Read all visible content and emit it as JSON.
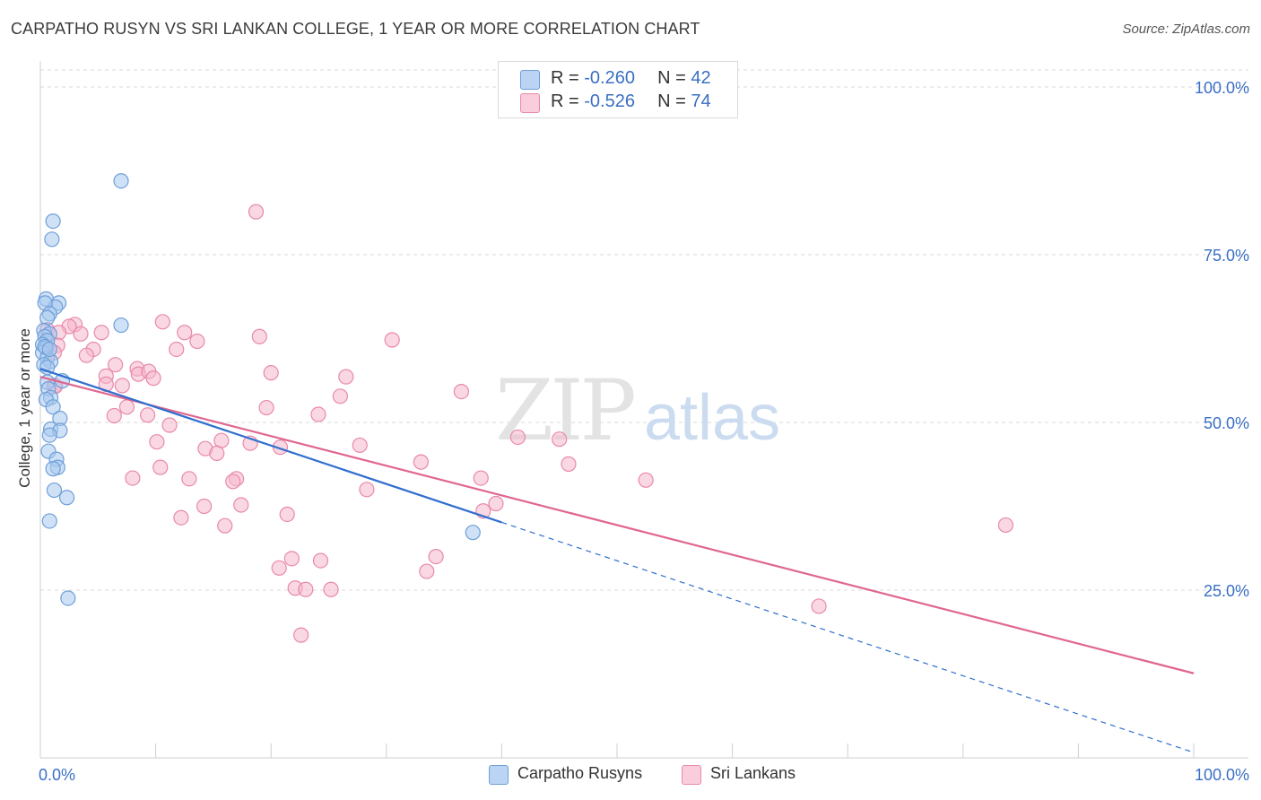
{
  "header": {
    "title": "CARPATHO RUSYN VS SRI LANKAN COLLEGE, 1 YEAR OR MORE CORRELATION CHART",
    "source": "Source: ZipAtlas.com"
  },
  "watermark": {
    "zip": "ZIP",
    "atlas": "atlas"
  },
  "legend": {
    "rows": [
      {
        "r_label": "R = ",
        "r_value": "-0.260",
        "n_label": "N = ",
        "n_value": "42"
      },
      {
        "r_label": "R = ",
        "r_value": "-0.526",
        "n_label": "N = ",
        "n_value": "74"
      }
    ]
  },
  "bottom_legend": [
    "Carpatho Rusyns",
    "Sri Lankans"
  ],
  "colors": {
    "blue_fill": "#a8c8ef",
    "blue_stroke": "#6f9fd8",
    "blue_line": "#2f6fcf",
    "pink_fill": "#f6b8cc",
    "pink_stroke": "#e889a8",
    "pink_line": "#e0668f",
    "tick_label": "#3a6fc4",
    "grid": "#d8d8d8"
  },
  "chart_data": {
    "type": "scatter",
    "title": "CARPATHO RUSYN VS SRI LANKAN COLLEGE, 1 YEAR OR MORE CORRELATION CHART",
    "xlabel": "",
    "ylabel": "College, 1 year or more",
    "xlim": [
      0,
      100
    ],
    "ylim": [
      0,
      100
    ],
    "x_tick_labels": [
      "0.0%",
      "100.0%"
    ],
    "y_tick_values": [
      25,
      50,
      75,
      100
    ],
    "y_tick_labels": [
      "25.0%",
      "50.0%",
      "75.0%",
      "100.0%"
    ],
    "grid": true,
    "series": [
      {
        "name": "Carpatho Rusyns",
        "color": "#6f9fd8",
        "R": -0.26,
        "N": 42,
        "trend": {
          "x": [
            0,
            40
          ],
          "y": [
            58,
            35.1
          ],
          "dashed_to": [
            100,
            0.8
          ]
        },
        "points": [
          [
            7,
            86
          ],
          [
            1.1,
            80
          ],
          [
            1,
            77.3
          ],
          [
            0.5,
            68.4
          ],
          [
            1.6,
            67.8
          ],
          [
            1.3,
            67.2
          ],
          [
            0.4,
            67.8
          ],
          [
            0.8,
            66.2
          ],
          [
            0.6,
            65.6
          ],
          [
            0.3,
            63.7
          ],
          [
            0.8,
            63.2
          ],
          [
            0.4,
            62.8
          ],
          [
            0.6,
            62.2
          ],
          [
            0.2,
            61.6
          ],
          [
            0.5,
            61.1
          ],
          [
            0.2,
            60.4
          ],
          [
            0.6,
            59.6
          ],
          [
            0.9,
            59.1
          ],
          [
            0.3,
            58.6
          ],
          [
            0.6,
            58.2
          ],
          [
            1.9,
            56.2
          ],
          [
            0.6,
            56
          ],
          [
            0.7,
            55
          ],
          [
            0.9,
            53.7
          ],
          [
            0.5,
            53.4
          ],
          [
            1.1,
            52.3
          ],
          [
            1.7,
            50.6
          ],
          [
            0.9,
            49
          ],
          [
            1.7,
            48.8
          ],
          [
            0.8,
            48.1
          ],
          [
            0.7,
            45.7
          ],
          [
            1.4,
            44.5
          ],
          [
            1.5,
            43.3
          ],
          [
            1.1,
            43.1
          ],
          [
            1.2,
            39.9
          ],
          [
            2.3,
            38.8
          ],
          [
            0.8,
            35.3
          ],
          [
            37.5,
            33.6
          ],
          [
            2.4,
            23.8
          ],
          [
            7,
            64.5
          ],
          [
            0.4,
            61.3
          ],
          [
            0.8,
            60.9
          ]
        ]
      },
      {
        "name": "Sri Lankans",
        "color": "#e889a8",
        "R": -0.526,
        "N": 74,
        "trend": {
          "x": [
            0,
            100
          ],
          "y": [
            56.8,
            12.6
          ]
        },
        "points": [
          [
            18.7,
            81.4
          ],
          [
            10.6,
            65
          ],
          [
            3,
            64.6
          ],
          [
            2.5,
            64.3
          ],
          [
            0.6,
            63.8
          ],
          [
            1.6,
            63.4
          ],
          [
            3.5,
            63.2
          ],
          [
            12.5,
            63.4
          ],
          [
            19,
            62.8
          ],
          [
            5.3,
            63.4
          ],
          [
            13.6,
            62.1
          ],
          [
            30.5,
            62.3
          ],
          [
            1.5,
            61.5
          ],
          [
            4.6,
            60.9
          ],
          [
            11.8,
            60.9
          ],
          [
            1.2,
            60.4
          ],
          [
            4,
            60
          ],
          [
            6.5,
            58.6
          ],
          [
            8.4,
            58
          ],
          [
            8.5,
            57.2
          ],
          [
            9.4,
            57.6
          ],
          [
            20,
            57.4
          ],
          [
            5.7,
            56.9
          ],
          [
            9.8,
            56.6
          ],
          [
            26.5,
            56.8
          ],
          [
            7.1,
            55.5
          ],
          [
            5.7,
            55.7
          ],
          [
            1.2,
            55.5
          ],
          [
            36.5,
            54.6
          ],
          [
            26,
            53.9
          ],
          [
            7.5,
            52.3
          ],
          [
            19.6,
            52.2
          ],
          [
            6.4,
            51
          ],
          [
            9.3,
            51.1
          ],
          [
            24.1,
            51.2
          ],
          [
            11.2,
            49.6
          ],
          [
            41.4,
            47.8
          ],
          [
            45,
            47.5
          ],
          [
            15.7,
            47.3
          ],
          [
            18.2,
            46.9
          ],
          [
            10.1,
            47.1
          ],
          [
            27.7,
            46.6
          ],
          [
            20.8,
            46.3
          ],
          [
            14.3,
            46.1
          ],
          [
            15.3,
            45.4
          ],
          [
            33,
            44.1
          ],
          [
            45.8,
            43.8
          ],
          [
            10.4,
            43.3
          ],
          [
            8,
            41.7
          ],
          [
            12.9,
            41.6
          ],
          [
            17,
            41.6
          ],
          [
            38.2,
            41.7
          ],
          [
            52.5,
            41.4
          ],
          [
            16.7,
            41.2
          ],
          [
            28.3,
            40
          ],
          [
            39.5,
            37.9
          ],
          [
            14.2,
            37.5
          ],
          [
            17.4,
            37.7
          ],
          [
            21.4,
            36.3
          ],
          [
            38.4,
            36.8
          ],
          [
            12.2,
            35.8
          ],
          [
            16,
            34.6
          ],
          [
            83.7,
            34.7
          ],
          [
            34.3,
            30
          ],
          [
            21.8,
            29.7
          ],
          [
            24.3,
            29.4
          ],
          [
            20.7,
            28.3
          ],
          [
            33.5,
            27.8
          ],
          [
            22.1,
            25.3
          ],
          [
            23,
            25.1
          ],
          [
            25.2,
            25.1
          ],
          [
            67.5,
            22.6
          ],
          [
            22.6,
            18.3
          ],
          [
            1.3,
            55.4
          ]
        ]
      }
    ]
  }
}
